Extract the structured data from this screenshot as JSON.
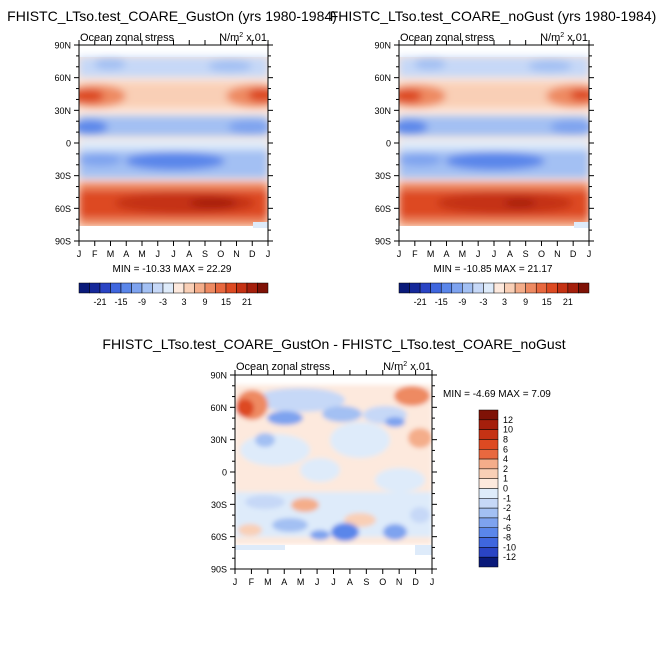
{
  "colors": {
    "neg": [
      "#0a1a7a",
      "#15289a",
      "#2a44c4",
      "#3f66de",
      "#5a86ea",
      "#7ea3ef",
      "#a3c0f3",
      "#c6d8f7",
      "#deebfa"
    ],
    "pos": [
      "#fde9dd",
      "#f9cfb6",
      "#f4ad8a",
      "#ee8a62",
      "#e8683f",
      "#dd4a22",
      "#c53214",
      "#a51f0c",
      "#7f1206"
    ],
    "white": "#ffffff"
  },
  "chart_data": [
    {
      "type": "heatmap",
      "id": "gust-on",
      "title": "FHISTC_LTso.test_COARE_GustOn (yrs 1980-1984)",
      "left_label": "Ocean zonal stress",
      "units": "N/m",
      "units_sup": "2",
      "units_suffix": " x.01",
      "xlabel": "",
      "ylabel": "",
      "x_ticks": [
        "J",
        "F",
        "M",
        "A",
        "M",
        "J",
        "J",
        "A",
        "S",
        "O",
        "N",
        "D",
        "J"
      ],
      "y_ticks": [
        "90N",
        "60N",
        "30N",
        "0",
        "30S",
        "60S",
        "90S"
      ],
      "ylim": [
        -90,
        90
      ],
      "stats": "MIN = -10.33 MAX =  22.29",
      "min": -10.33,
      "max": 22.29,
      "colorbar_labels": [
        "-21",
        "-15",
        "-9",
        "-3",
        "3",
        "9",
        "15",
        "21"
      ],
      "colorbar_levels": 18
    },
    {
      "type": "heatmap",
      "id": "no-gust",
      "title": "FHISTC_LTso.test_COARE_noGust (yrs 1980-1984)",
      "left_label": "Ocean zonal stress",
      "units": "N/m",
      "units_sup": "2",
      "units_suffix": " x.01",
      "xlabel": "",
      "ylabel": "",
      "x_ticks": [
        "J",
        "F",
        "M",
        "A",
        "M",
        "J",
        "J",
        "A",
        "S",
        "O",
        "N",
        "D",
        "J"
      ],
      "y_ticks": [
        "90N",
        "60N",
        "30N",
        "0",
        "30S",
        "60S",
        "90S"
      ],
      "ylim": [
        -90,
        90
      ],
      "stats": "MIN = -10.85 MAX =  21.17",
      "min": -10.85,
      "max": 21.17,
      "colorbar_labels": [
        "-21",
        "-15",
        "-9",
        "-3",
        "3",
        "9",
        "15",
        "21"
      ],
      "colorbar_levels": 18
    },
    {
      "type": "heatmap",
      "id": "diff",
      "title": "FHISTC_LTso.test_COARE_GustOn - FHISTC_LTso.test_COARE_noGust",
      "left_label": "Ocean zonal stress",
      "units": "N/m",
      "units_sup": "2",
      "units_suffix": " x.01",
      "xlabel": "",
      "ylabel": "",
      "x_ticks": [
        "J",
        "F",
        "M",
        "A",
        "M",
        "J",
        "J",
        "A",
        "S",
        "O",
        "N",
        "D",
        "J"
      ],
      "y_ticks": [
        "90N",
        "60N",
        "30N",
        "0",
        "30S",
        "60S",
        "90S"
      ],
      "ylim": [
        -90,
        90
      ],
      "stats": "MIN =  -4.69 MAX =   7.09",
      "min": -4.69,
      "max": 7.09,
      "colorbar_labels": [
        "12",
        "10",
        "8",
        "6",
        "4",
        "2",
        "1",
        "0",
        "-1",
        "-2",
        "-4",
        "-6",
        "-8",
        "-10",
        "-12"
      ],
      "colorbar_levels": 16
    }
  ]
}
